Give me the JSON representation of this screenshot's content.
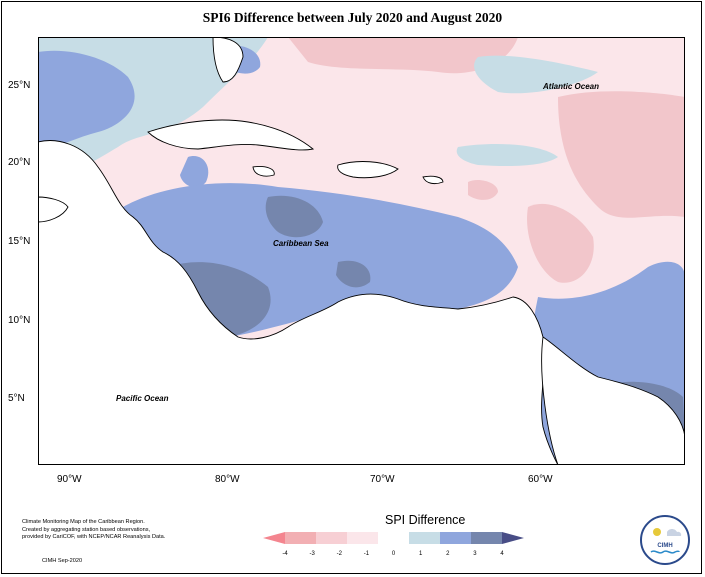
{
  "title": "SPI6 Difference between July 2020 and August 2020",
  "map": {
    "region": "Caribbean",
    "lon_range": [
      -92,
      -48
    ],
    "lat_range": [
      0,
      27.5
    ],
    "latitude_labels": [
      "25°N",
      "20°N",
      "15°N",
      "10°N",
      "5°N"
    ],
    "longitude_labels": [
      "90°W",
      "80°W",
      "70°W",
      "60°W"
    ],
    "place_labels": [
      "Atlantic Ocean",
      "Caribbean Sea",
      "Pacific Ocean"
    ]
  },
  "legend": {
    "title": "SPI Difference",
    "ticks": [
      "-4",
      "-3",
      "-2",
      "-1",
      "0",
      "1",
      "2",
      "3",
      "4"
    ],
    "colors": [
      "#f4858f",
      "#f2afb3",
      "#f7cfd4",
      "#fbe6ea",
      "#ffffff",
      "#c7dde6",
      "#8fa6dd",
      "#7586ad",
      "#484d86"
    ]
  },
  "caption": {
    "lines": [
      "Climate Monitoring Map of the Caribbean Region.",
      "Created by aggregating station based observations,",
      "provided by CariCOF, with NCEP/NCAR Reanalysis Data."
    ],
    "credit": "CIMH Sep-2020"
  },
  "logo": {
    "text": "CIMH",
    "name": "cimh-logo-icon"
  }
}
